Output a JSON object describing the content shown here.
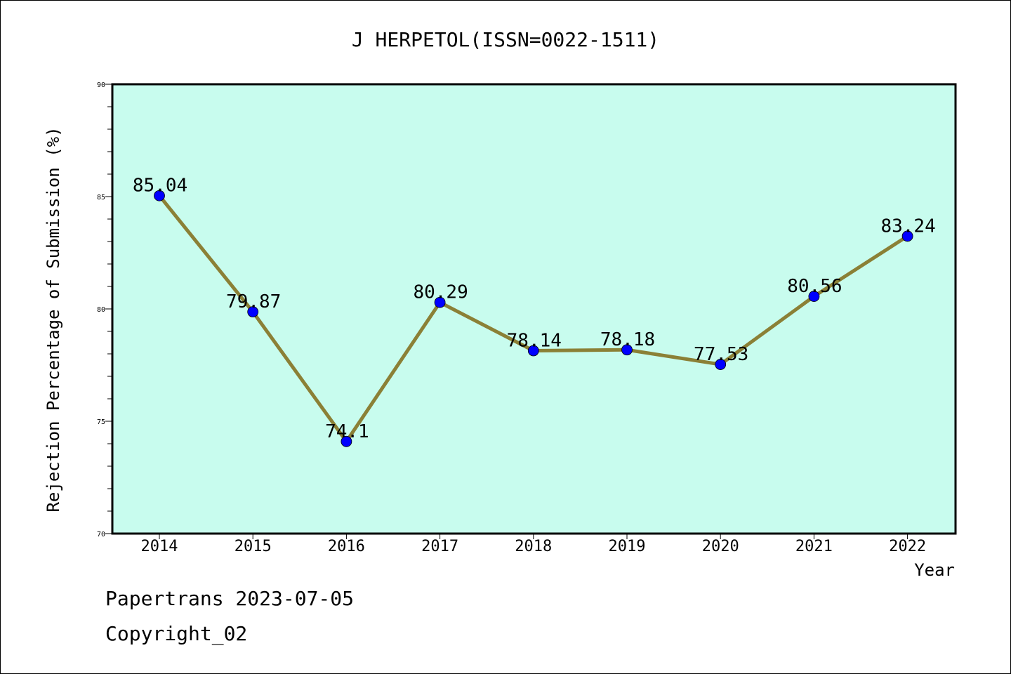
{
  "chart_data": {
    "type": "line",
    "title": "J HERPETOL(ISSN=0022-1511)",
    "xlabel": "Year",
    "ylabel": "Rejection Percentage of Submission (%)",
    "categories": [
      "2014",
      "2015",
      "2016",
      "2017",
      "2018",
      "2019",
      "2020",
      "2021",
      "2022"
    ],
    "values": [
      85.04,
      79.87,
      74.1,
      80.29,
      78.14,
      78.18,
      77.53,
      80.56,
      83.24
    ],
    "data_labels": [
      "85.04",
      "79.87",
      "74.1",
      "80.29",
      "78.14",
      "78.18",
      "77.53",
      "80.56",
      "83.24"
    ],
    "ylim": [
      70,
      90
    ],
    "yticks": [
      70,
      75,
      80,
      85,
      90
    ],
    "plot_background": "#c8fcee",
    "line_color": "#8b8036",
    "marker_color": "#0000ff",
    "grid": false
  },
  "footer": {
    "line1": "Papertrans 2023-07-05",
    "line2": "Copyright_02"
  }
}
